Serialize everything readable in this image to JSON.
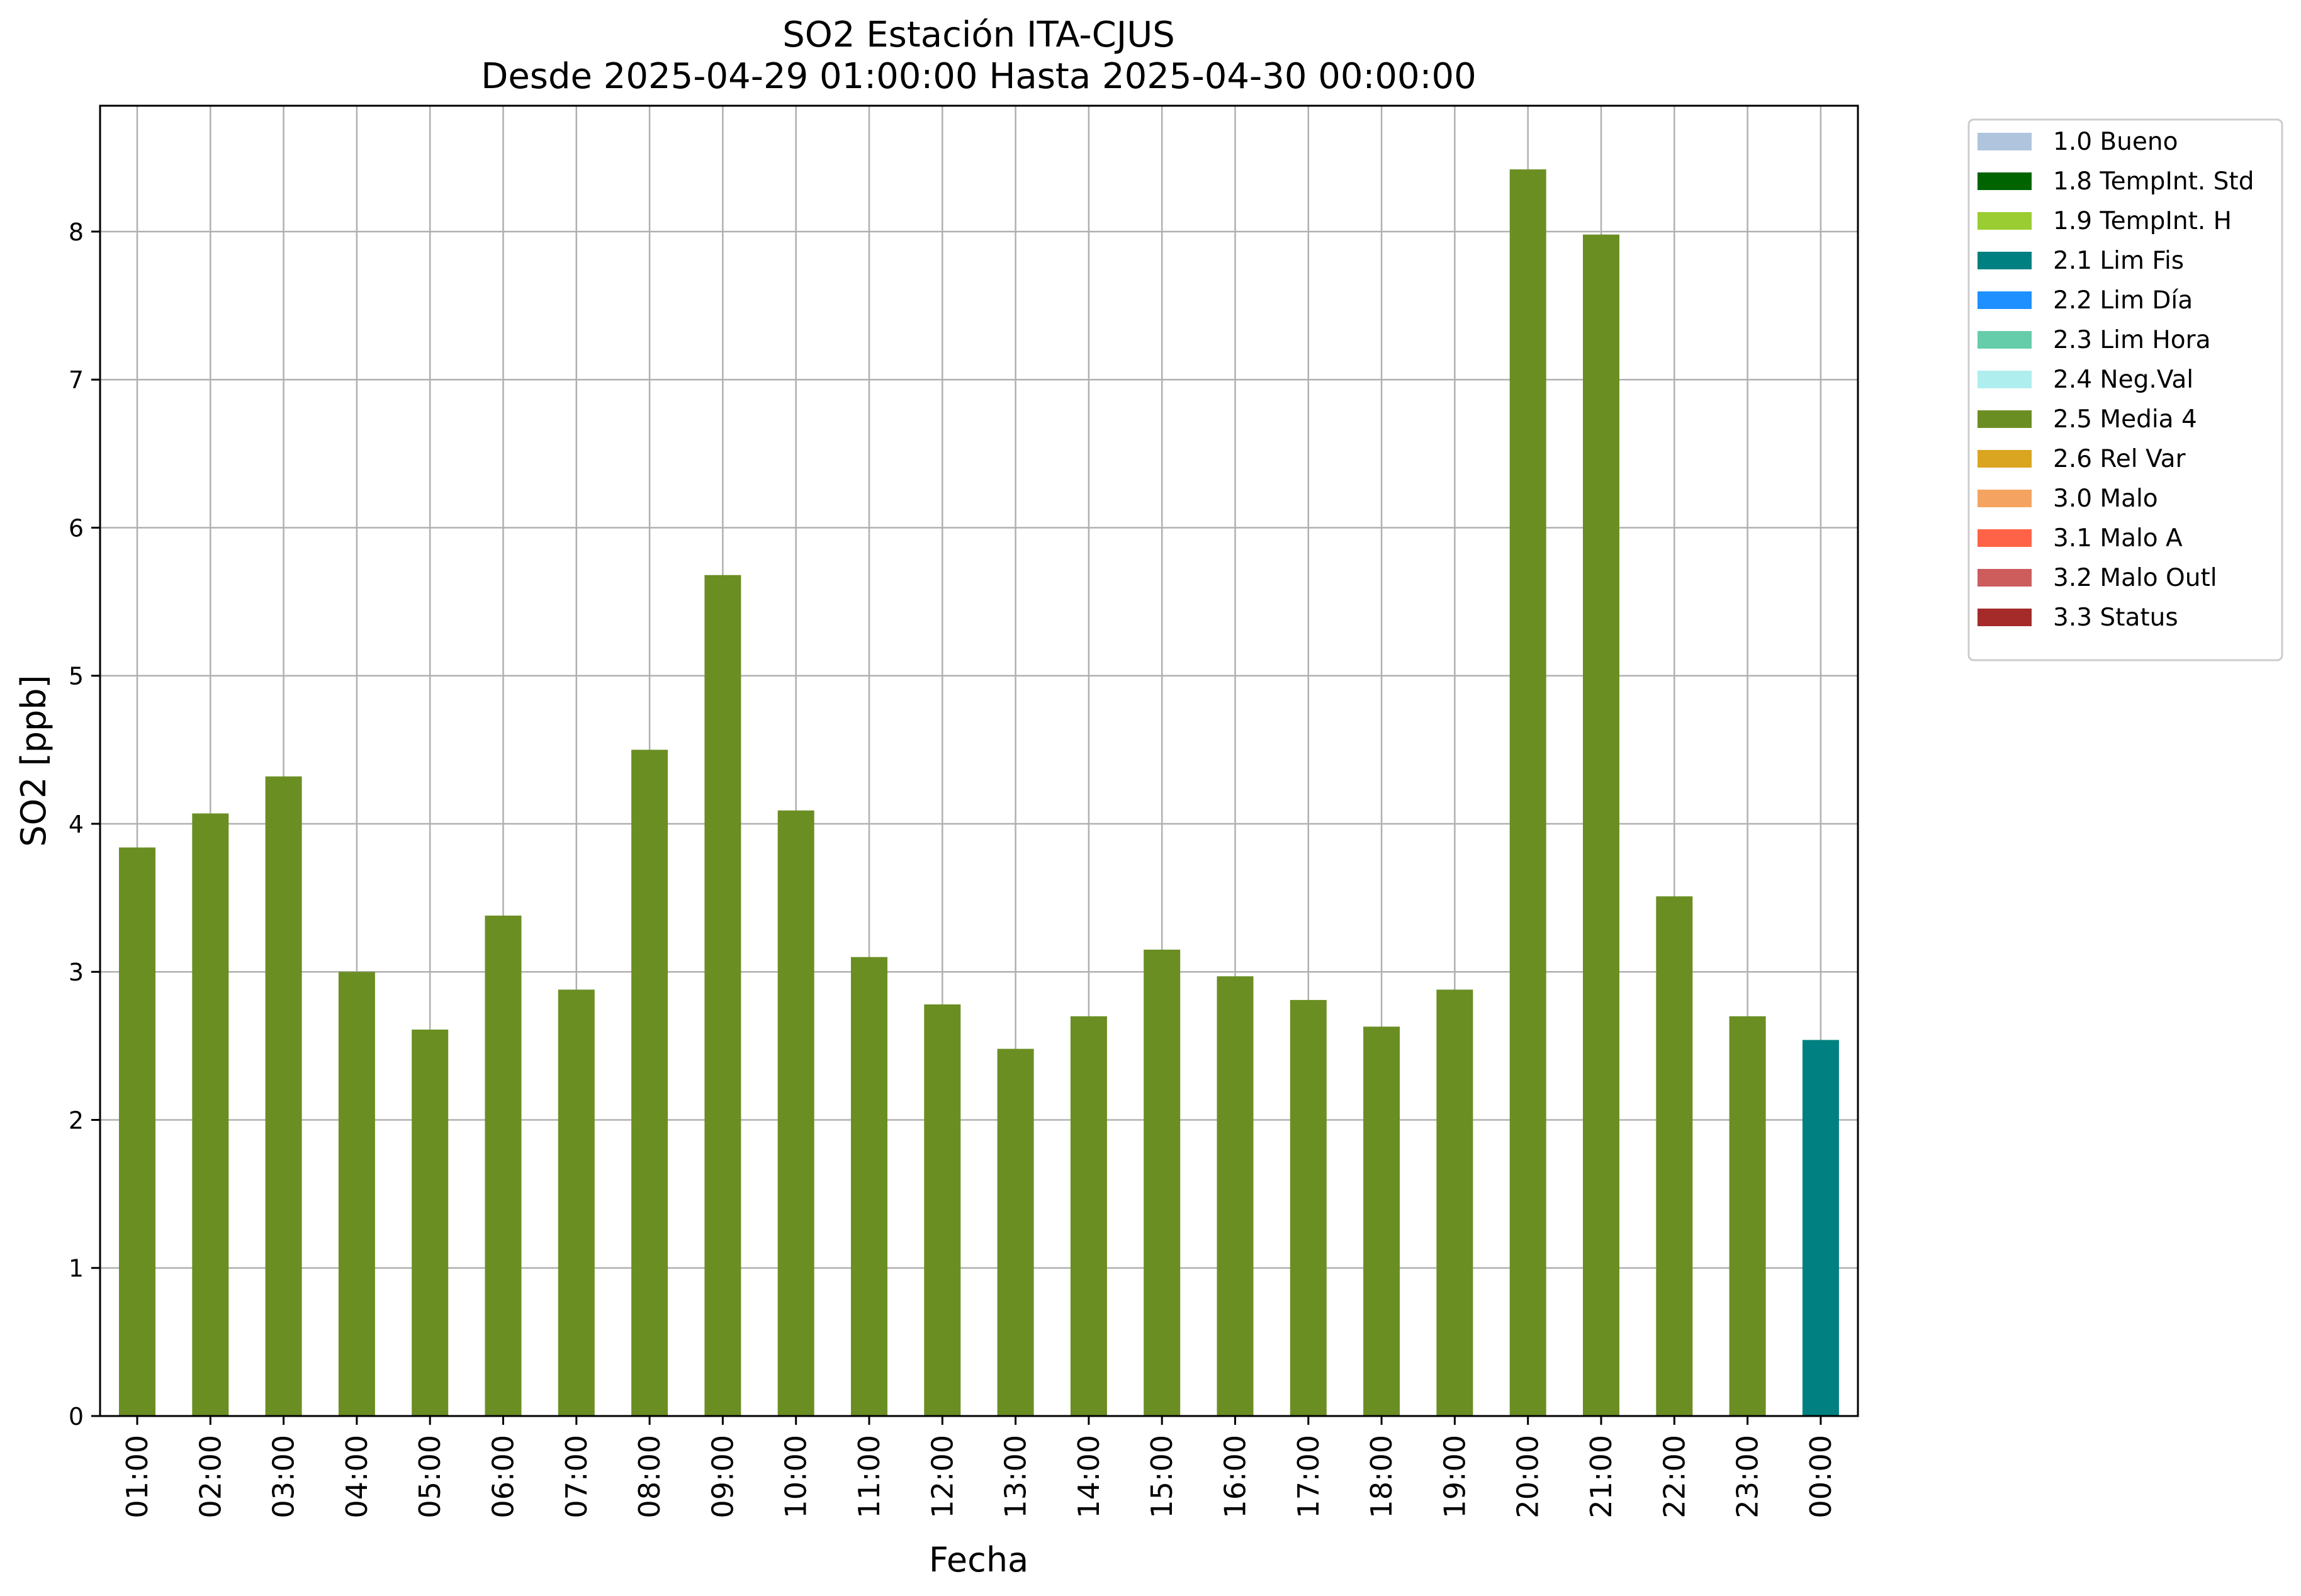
{
  "chart_data": {
    "type": "bar",
    "title": "SO2 Estación ITA-CJUS",
    "subtitle": "Desde 2025-04-29 01:00:00 Hasta 2025-04-30 00:00:00",
    "xlabel": "Fecha",
    "ylabel": "SO2 [ppb]",
    "ylim": [
      0,
      8.85
    ],
    "yticks": [
      0,
      1,
      2,
      3,
      4,
      5,
      6,
      7,
      8
    ],
    "grid": true,
    "legend_position": "outside-top-right",
    "categories": [
      "01:00",
      "02:00",
      "03:00",
      "04:00",
      "05:00",
      "06:00",
      "07:00",
      "08:00",
      "09:00",
      "10:00",
      "11:00",
      "12:00",
      "13:00",
      "14:00",
      "15:00",
      "16:00",
      "17:00",
      "18:00",
      "19:00",
      "20:00",
      "21:00",
      "22:00",
      "23:00",
      "00:00"
    ],
    "values": [
      3.84,
      4.07,
      4.32,
      3.0,
      2.61,
      3.38,
      2.88,
      4.5,
      5.68,
      4.09,
      3.1,
      2.78,
      2.48,
      2.7,
      3.15,
      2.97,
      2.81,
      2.63,
      2.88,
      8.42,
      7.98,
      3.51,
      2.7,
      2.54
    ],
    "flags": [
      "2.5 Media 4",
      "2.5 Media 4",
      "2.5 Media 4",
      "2.5 Media 4",
      "2.5 Media 4",
      "2.5 Media 4",
      "2.5 Media 4",
      "2.5 Media 4",
      "2.5 Media 4",
      "2.5 Media 4",
      "2.5 Media 4",
      "2.5 Media 4",
      "2.5 Media 4",
      "2.5 Media 4",
      "2.5 Media 4",
      "2.5 Media 4",
      "2.5 Media 4",
      "2.5 Media 4",
      "2.5 Media 4",
      "2.5 Media 4",
      "2.5 Media 4",
      "2.5 Media 4",
      "2.5 Media 4",
      "2.1 Lim Fis"
    ],
    "legend": [
      {
        "label": "1.0 Bueno",
        "color": "#b0c4de"
      },
      {
        "label": "1.8 TempInt. Std",
        "color": "#006400"
      },
      {
        "label": "1.9 TempInt. H",
        "color": "#9acd32"
      },
      {
        "label": "2.1 Lim Fis",
        "color": "#008080"
      },
      {
        "label": "2.2 Lim Día",
        "color": "#1e90ff"
      },
      {
        "label": "2.3 Lim Hora",
        "color": "#66cdaa"
      },
      {
        "label": "2.4 Neg.Val",
        "color": "#afeeee"
      },
      {
        "label": "2.5 Media 4",
        "color": "#6b8e23"
      },
      {
        "label": "2.6 Rel Var",
        "color": "#daa520"
      },
      {
        "label": "3.0 Malo",
        "color": "#f4a460"
      },
      {
        "label": "3.1 Malo A",
        "color": "#ff6347"
      },
      {
        "label": "3.2 Malo Outl",
        "color": "#cd5c5c"
      },
      {
        "label": "3.3 Status",
        "color": "#a52a2a"
      }
    ]
  }
}
